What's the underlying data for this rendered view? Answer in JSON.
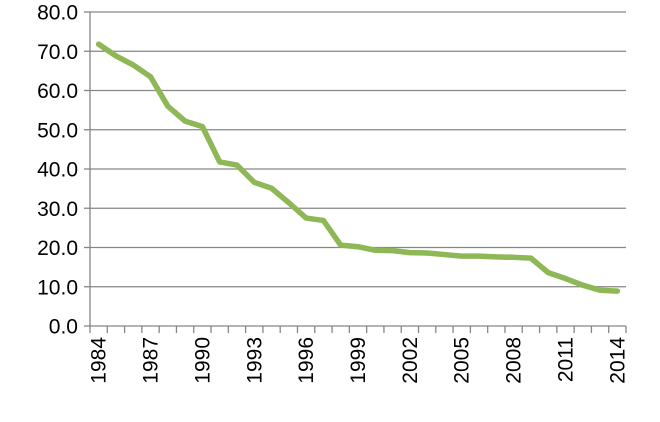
{
  "chart_data": {
    "type": "line",
    "title": "",
    "xlabel": "",
    "ylabel": "",
    "x": [
      1984,
      1985,
      1986,
      1987,
      1988,
      1989,
      1990,
      1991,
      1992,
      1993,
      1994,
      1995,
      1996,
      1997,
      1998,
      1999,
      2000,
      2001,
      2002,
      2003,
      2004,
      2005,
      2006,
      2007,
      2008,
      2009,
      2010,
      2011,
      2012,
      2013,
      2014
    ],
    "series": [
      {
        "values": [
          71.8,
          68.8,
          66.5,
          63.5,
          56.0,
          52.2,
          50.8,
          41.8,
          41.0,
          36.6,
          35.1,
          31.4,
          27.5,
          26.9,
          20.6,
          20.2,
          19.3,
          19.2,
          18.7,
          18.6,
          18.2,
          17.8,
          17.8,
          17.6,
          17.5,
          17.3,
          13.6,
          12.1,
          10.4,
          9.1,
          8.9
        ],
        "color": "#8eb755"
      }
    ],
    "x_tick_labels": [
      "1984",
      "1987",
      "1990",
      "1993",
      "1996",
      "1999",
      "2002",
      "2005",
      "2008",
      "2011",
      "2014"
    ],
    "y_tick_labels": [
      "0.0",
      "10.0",
      "20.0",
      "30.0",
      "40.0",
      "50.0",
      "60.0",
      "70.0",
      "80.0"
    ],
    "ylim": [
      0,
      80
    ],
    "xlim": [
      1984,
      2014
    ],
    "grid": true,
    "legend": "none",
    "gridline_color": "#868686",
    "axis_color": "#868686"
  }
}
